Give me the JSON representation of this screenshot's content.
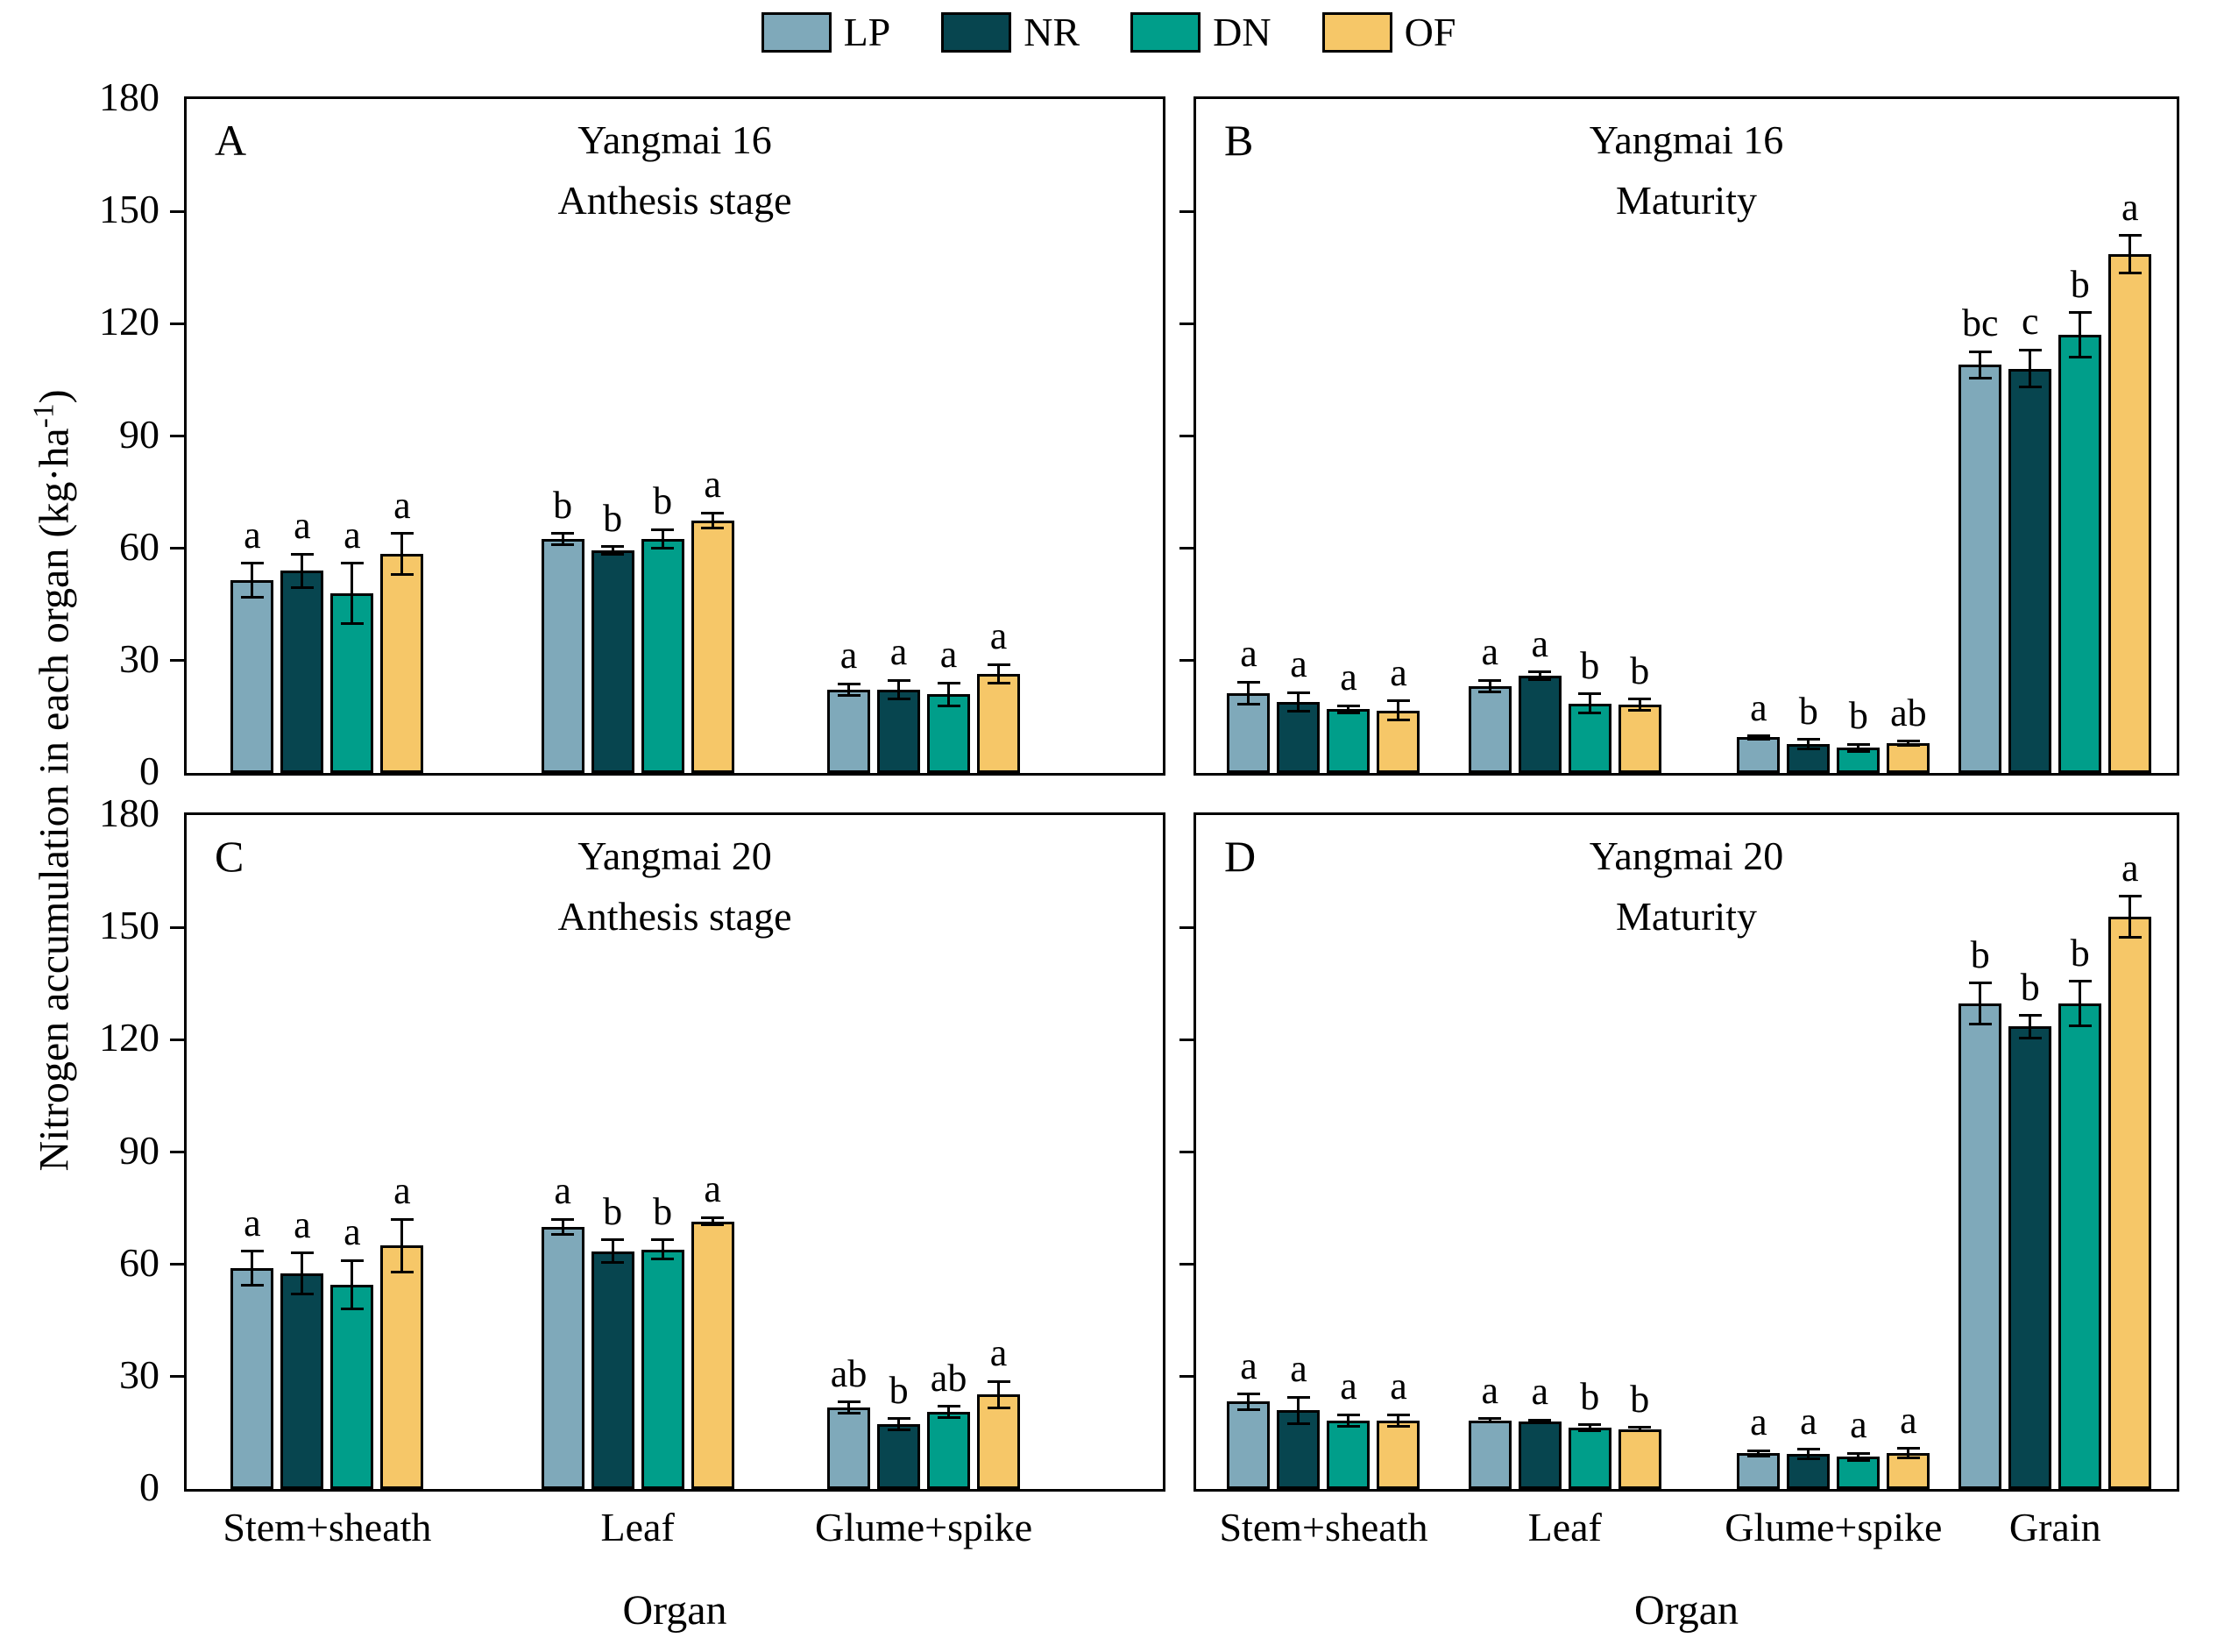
{
  "figure": {
    "y_axis_label_prefix": "Nitrogen accumulation in each organ (kg·ha",
    "y_axis_label_sup": "-1",
    "y_axis_label_suffix": ")",
    "x_axis_title": "Organ",
    "y_ticks": [
      "0",
      "30",
      "60",
      "90",
      "120",
      "150",
      "180"
    ]
  },
  "legend": {
    "items": [
      {
        "key": "LP",
        "label": "LP",
        "color": "#7fa9ba"
      },
      {
        "key": "NR",
        "label": "NR",
        "color": "#07454f"
      },
      {
        "key": "DN",
        "label": "DN",
        "color": "#009e8a"
      },
      {
        "key": "OF",
        "label": "OF",
        "color": "#f6c768"
      }
    ]
  },
  "chart_data": {
    "type": "bar",
    "title": "",
    "xlabel": "Organ",
    "ylabel": "Nitrogen accumulation in each organ (kg·ha-1)",
    "ylim": [
      0,
      180
    ],
    "y_tick_step": 30,
    "grid": false,
    "legend_position": "top-center",
    "series_names": [
      "LP",
      "NR",
      "DN",
      "OF"
    ],
    "panels": [
      {
        "id": "A",
        "title_line1": "Yangmai 16",
        "title_line2": "Anthesis stage",
        "show_y_tick_labels": true,
        "show_category_labels": false,
        "groups": [
          {
            "category": "Stem+sheath",
            "bars": [
              {
                "series": "LP",
                "value": 51.5,
                "error": 4.5,
                "letter": "a"
              },
              {
                "series": "NR",
                "value": 54.0,
                "error": 4.5,
                "letter": "a"
              },
              {
                "series": "DN",
                "value": 48.0,
                "error": 8.0,
                "letter": "a"
              },
              {
                "series": "OF",
                "value": 58.5,
                "error": 5.5,
                "letter": "a"
              }
            ]
          },
          {
            "category": "Leaf",
            "bars": [
              {
                "series": "LP",
                "value": 62.5,
                "error": 1.5,
                "letter": "b"
              },
              {
                "series": "NR",
                "value": 59.5,
                "error": 1.0,
                "letter": "b"
              },
              {
                "series": "DN",
                "value": 62.5,
                "error": 2.5,
                "letter": "b"
              },
              {
                "series": "OF",
                "value": 67.5,
                "error": 2.0,
                "letter": "a"
              }
            ]
          },
          {
            "category": "Glume+spike",
            "bars": [
              {
                "series": "LP",
                "value": 22.3,
                "error": 1.5,
                "letter": "a"
              },
              {
                "series": "NR",
                "value": 22.3,
                "error": 2.5,
                "letter": "a"
              },
              {
                "series": "DN",
                "value": 21.0,
                "error": 3.0,
                "letter": "a"
              },
              {
                "series": "OF",
                "value": 26.5,
                "error": 2.5,
                "letter": "a"
              }
            ]
          }
        ]
      },
      {
        "id": "B",
        "title_line1": "Yangmai 16",
        "title_line2": "Maturity",
        "show_y_tick_labels": false,
        "show_category_labels": false,
        "groups": [
          {
            "category": "Stem+sheath",
            "bars": [
              {
                "series": "LP",
                "value": 21.3,
                "error": 3.0,
                "letter": "a"
              },
              {
                "series": "NR",
                "value": 19.0,
                "error": 2.5,
                "letter": "a"
              },
              {
                "series": "DN",
                "value": 17.0,
                "error": 1.0,
                "letter": "a"
              },
              {
                "series": "OF",
                "value": 16.7,
                "error": 2.5,
                "letter": "a"
              }
            ]
          },
          {
            "category": "Leaf",
            "bars": [
              {
                "series": "LP",
                "value": 23.2,
                "error": 1.5,
                "letter": "a"
              },
              {
                "series": "NR",
                "value": 26.0,
                "error": 1.0,
                "letter": "a"
              },
              {
                "series": "DN",
                "value": 18.6,
                "error": 2.5,
                "letter": "b"
              },
              {
                "series": "OF",
                "value": 18.2,
                "error": 1.5,
                "letter": "b"
              }
            ]
          },
          {
            "category": "Glume+spike",
            "bars": [
              {
                "series": "LP",
                "value": 9.5,
                "error": 0.4,
                "letter": "a"
              },
              {
                "series": "NR",
                "value": 7.7,
                "error": 1.2,
                "letter": "b"
              },
              {
                "series": "DN",
                "value": 6.7,
                "error": 1.0,
                "letter": "b"
              },
              {
                "series": "OF",
                "value": 7.9,
                "error": 0.6,
                "letter": "ab"
              }
            ]
          },
          {
            "category": "Grain",
            "bars": [
              {
                "series": "LP",
                "value": 109.0,
                "error": 3.5,
                "letter": "bc"
              },
              {
                "series": "NR",
                "value": 108.0,
                "error": 5.0,
                "letter": "c"
              },
              {
                "series": "DN",
                "value": 117.0,
                "error": 6.0,
                "letter": "b"
              },
              {
                "series": "OF",
                "value": 138.5,
                "error": 5.0,
                "letter": "a"
              }
            ]
          }
        ]
      },
      {
        "id": "C",
        "title_line1": "Yangmai 20",
        "title_line2": "Anthesis stage",
        "show_y_tick_labels": true,
        "show_category_labels": true,
        "groups": [
          {
            "category": "Stem+sheath",
            "bars": [
              {
                "series": "LP",
                "value": 59.0,
                "error": 4.5,
                "letter": "a"
              },
              {
                "series": "NR",
                "value": 57.5,
                "error": 5.5,
                "letter": "a"
              },
              {
                "series": "DN",
                "value": 54.5,
                "error": 6.5,
                "letter": "a"
              },
              {
                "series": "OF",
                "value": 65.0,
                "error": 7.0,
                "letter": "a"
              }
            ]
          },
          {
            "category": "Leaf",
            "bars": [
              {
                "series": "LP",
                "value": 70.0,
                "error": 2.0,
                "letter": "a"
              },
              {
                "series": "NR",
                "value": 63.5,
                "error": 3.0,
                "letter": "b"
              },
              {
                "series": "DN",
                "value": 64.0,
                "error": 2.5,
                "letter": "b"
              },
              {
                "series": "OF",
                "value": 71.5,
                "error": 1.0,
                "letter": "a"
              }
            ]
          },
          {
            "category": "Glume+spike",
            "bars": [
              {
                "series": "LP",
                "value": 21.7,
                "error": 1.5,
                "letter": "ab"
              },
              {
                "series": "NR",
                "value": 17.3,
                "error": 1.5,
                "letter": "b"
              },
              {
                "series": "DN",
                "value": 20.6,
                "error": 1.5,
                "letter": "ab"
              },
              {
                "series": "OF",
                "value": 25.2,
                "error": 3.5,
                "letter": "a"
              }
            ]
          }
        ]
      },
      {
        "id": "D",
        "title_line1": "Yangmai 20",
        "title_line2": "Maturity",
        "show_y_tick_labels": false,
        "show_category_labels": true,
        "groups": [
          {
            "category": "Stem+sheath",
            "bars": [
              {
                "series": "LP",
                "value": 23.3,
                "error": 2.0,
                "letter": "a"
              },
              {
                "series": "NR",
                "value": 21.0,
                "error": 3.5,
                "letter": "a"
              },
              {
                "series": "DN",
                "value": 18.3,
                "error": 1.5,
                "letter": "a"
              },
              {
                "series": "OF",
                "value": 18.3,
                "error": 1.5,
                "letter": "a"
              }
            ]
          },
          {
            "category": "Leaf",
            "bars": [
              {
                "series": "LP",
                "value": 18.3,
                "error": 0.5,
                "letter": "a"
              },
              {
                "series": "NR",
                "value": 18.0,
                "error": 0.4,
                "letter": "a"
              },
              {
                "series": "DN",
                "value": 16.4,
                "error": 0.8,
                "letter": "b"
              },
              {
                "series": "OF",
                "value": 16.0,
                "error": 0.5,
                "letter": "b"
              }
            ]
          },
          {
            "category": "Glume+spike",
            "bars": [
              {
                "series": "LP",
                "value": 9.5,
                "error": 0.8,
                "letter": "a"
              },
              {
                "series": "NR",
                "value": 9.3,
                "error": 1.3,
                "letter": "a"
              },
              {
                "series": "DN",
                "value": 8.6,
                "error": 1.0,
                "letter": "a"
              },
              {
                "series": "OF",
                "value": 9.6,
                "error": 1.2,
                "letter": "a"
              }
            ]
          },
          {
            "category": "Grain",
            "bars": [
              {
                "series": "LP",
                "value": 129.6,
                "error": 5.5,
                "letter": "b"
              },
              {
                "series": "NR",
                "value": 123.5,
                "error": 3.0,
                "letter": "b"
              },
              {
                "series": "DN",
                "value": 129.6,
                "error": 6.0,
                "letter": "b"
              },
              {
                "series": "OF",
                "value": 152.8,
                "error": 5.5,
                "letter": "a"
              }
            ]
          }
        ]
      }
    ]
  }
}
